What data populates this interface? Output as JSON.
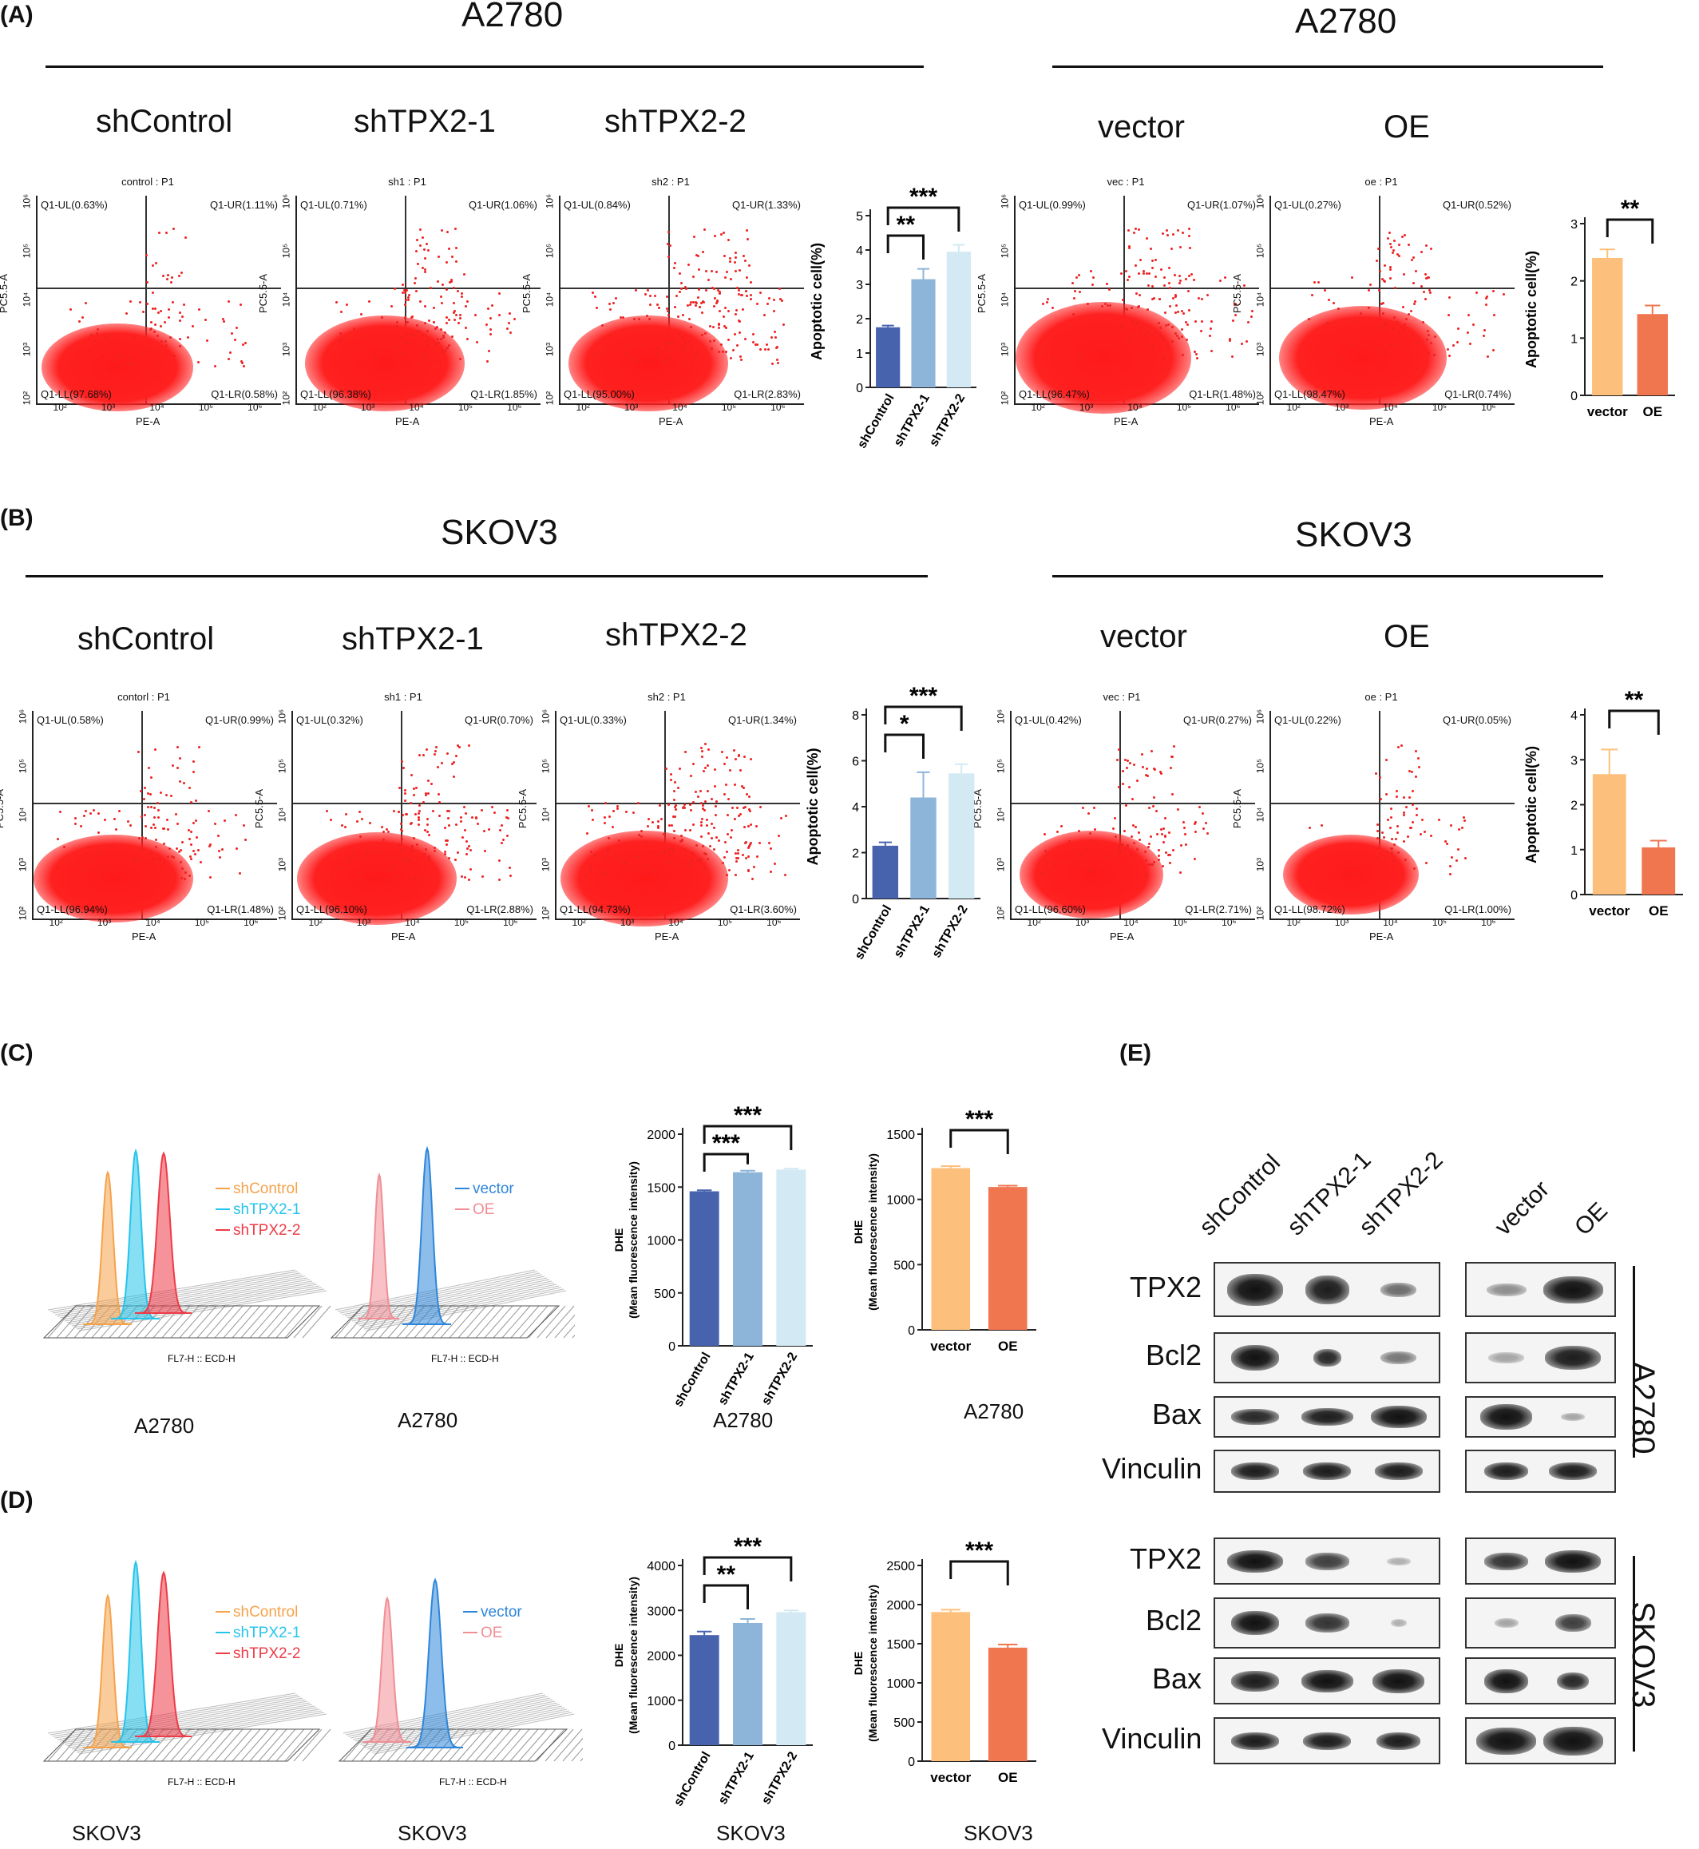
{
  "panels": {
    "A": {
      "letter": "(A)",
      "left_title": "A2780",
      "right_title": "A2780",
      "conds_left": [
        "shControl",
        "shTPX2-1",
        "shTPX2-2"
      ],
      "conds_right": [
        "vector",
        "OE"
      ],
      "facs": [
        {
          "title": "control : P1",
          "ul": "Q1-UL(0.63%)",
          "ur": "Q1-UR(1.11%)",
          "ll": "Q1-LL(97.68%)",
          "lr": "Q1-LR(0.58%)"
        },
        {
          "title": "sh1 : P1",
          "ul": "Q1-UL(0.71%)",
          "ur": "Q1-UR(1.06%)",
          "ll": "Q1-LL(96.38%)",
          "lr": "Q1-LR(1.85%)"
        },
        {
          "title": "sh2 : P1",
          "ul": "Q1-UL(0.84%)",
          "ur": "Q1-UR(1.33%)",
          "ll": "Q1-LL(95.00%)",
          "lr": "Q1-LR(2.83%)"
        },
        {
          "title": "vec : P1",
          "ul": "Q1-UL(0.99%)",
          "ur": "Q1-UR(1.07%)",
          "ll": "Q1-LL(96.47%)",
          "lr": "Q1-LR(1.48%)"
        },
        {
          "title": "oe : P1",
          "ul": "Q1-UL(0.27%)",
          "ur": "Q1-UR(0.52%)",
          "ll": "Q1-LL(98.47%)",
          "lr": "Q1-LR(0.74%)"
        }
      ]
    },
    "B": {
      "letter": "(B)",
      "left_title": "SKOV3",
      "right_title": "SKOV3",
      "conds_left": [
        "shControl",
        "shTPX2-1",
        "shTPX2-2"
      ],
      "conds_right": [
        "vector",
        "OE"
      ],
      "facs": [
        {
          "title": "contorl : P1",
          "ul": "Q1-UL(0.58%)",
          "ur": "Q1-UR(0.99%)",
          "ll": "Q1-LL(96.94%)",
          "lr": "Q1-LR(1.48%)"
        },
        {
          "title": "sh1 : P1",
          "ul": "Q1-UL(0.32%)",
          "ur": "Q1-UR(0.70%)",
          "ll": "Q1-LL(96.10%)",
          "lr": "Q1-LR(2.88%)"
        },
        {
          "title": "sh2 : P1",
          "ul": "Q1-UL(0.33%)",
          "ur": "Q1-UR(1.34%)",
          "ll": "Q1-LL(94.73%)",
          "lr": "Q1-LR(3.60%)"
        },
        {
          "title": "vec : P1",
          "ul": "Q1-UL(0.42%)",
          "ur": "Q1-UR(0.27%)",
          "ll": "Q1-LL(96.60%)",
          "lr": "Q1-LR(2.71%)"
        },
        {
          "title": "oe : P1",
          "ul": "Q1-UL(0.22%)",
          "ur": "Q1-UR(0.05%)",
          "ll": "Q1-LL(98.72%)",
          "lr": "Q1-LR(1.00%)"
        }
      ]
    },
    "C": {
      "letter": "(C)",
      "hist1_caption": "A2780",
      "hist2_caption": "A2780",
      "bar1_caption": "A2780",
      "bar2_caption": "A2780"
    },
    "D": {
      "letter": "(D)",
      "hist1_caption": "SKOV3",
      "hist2_caption": "SKOV3",
      "bar1_caption": "SKOV3",
      "bar2_caption": "SKOV3"
    },
    "E": {
      "letter": "(E)",
      "lanes_left": [
        "shControl",
        "shTPX2-1",
        "shTPX2-2"
      ],
      "lanes_right": [
        "vector",
        "OE"
      ],
      "proteins": [
        "TPX2",
        "Bcl2",
        "Bax",
        "Vinculin"
      ],
      "cell_a": "A2780",
      "cell_b": "SKOV3"
    }
  },
  "facs_axis": {
    "x_label": "PE-A",
    "y_label": "PC5.5-A",
    "x_ticks": [
      "10²",
      "10³",
      "10⁴",
      "10⁵",
      "10⁶"
    ],
    "y_ticks": [
      "10⁶",
      "10⁵",
      "10⁴",
      "10³",
      "10²"
    ]
  },
  "hist_axis": {
    "x_label": "FL7-H :: ECD-H"
  },
  "hist_legend": {
    "sh": [
      "shControl",
      "shTPX2-1",
      "shTPX2-2"
    ],
    "oe": [
      "vector",
      "OE"
    ]
  },
  "colors": {
    "shControl": "#4763AE",
    "shTPX2_1": "#8DB5DA",
    "shTPX2_2": "#D3E9F3",
    "vector": "#FDC07C",
    "OE": "#F07650",
    "facs_dots": "#FF2020"
  },
  "chart_data": [
    {
      "id": "A_sh",
      "type": "bar",
      "ylabel": "Apoptotic cell(%)",
      "categories": [
        "shControl",
        "shTPX2-1",
        "shTPX2-2"
      ],
      "values": [
        1.75,
        3.15,
        3.95
      ],
      "errors": [
        0.05,
        0.3,
        0.2
      ],
      "ylim": [
        0,
        5
      ],
      "yticks": [
        0,
        1,
        2,
        3,
        4,
        5
      ],
      "sig": [
        {
          "from": 0,
          "to": 1,
          "label": "**"
        },
        {
          "from": 0,
          "to": 2,
          "label": "***"
        }
      ]
    },
    {
      "id": "A_oe",
      "type": "bar",
      "ylabel": "Apoptotic cell(%)",
      "categories": [
        "vector",
        "OE"
      ],
      "values": [
        2.4,
        1.42
      ],
      "errors": [
        0.15,
        0.15
      ],
      "ylim": [
        0,
        3
      ],
      "yticks": [
        0,
        1,
        2,
        3
      ],
      "sig": [
        {
          "from": 0,
          "to": 1,
          "label": "**"
        }
      ]
    },
    {
      "id": "B_sh",
      "type": "bar",
      "ylabel": "Apoptotic cell(%)",
      "categories": [
        "shControl",
        "shTPX2-1",
        "shTPX2-2"
      ],
      "values": [
        2.3,
        4.4,
        5.45
      ],
      "errors": [
        0.15,
        1.1,
        0.4
      ],
      "ylim": [
        0,
        8
      ],
      "yticks": [
        0,
        2,
        4,
        6,
        8
      ],
      "sig": [
        {
          "from": 0,
          "to": 1,
          "label": "*"
        },
        {
          "from": 0,
          "to": 2,
          "label": "***"
        }
      ]
    },
    {
      "id": "B_oe",
      "type": "bar",
      "ylabel": "Apoptotic cell(%)",
      "categories": [
        "vector",
        "OE"
      ],
      "values": [
        2.68,
        1.05
      ],
      "errors": [
        0.55,
        0.15
      ],
      "ylim": [
        0,
        4
      ],
      "yticks": [
        0,
        1,
        2,
        3,
        4
      ],
      "sig": [
        {
          "from": 0,
          "to": 1,
          "label": "**"
        }
      ]
    },
    {
      "id": "C_sh",
      "type": "bar",
      "ylabel": "DHE\n(Mean fluorescence intensity)",
      "categories": [
        "shControl",
        "shTPX2-1",
        "shTPX2-2"
      ],
      "values": [
        1460,
        1640,
        1665
      ],
      "errors": [
        10,
        15,
        10
      ],
      "ylim": [
        0,
        2000
      ],
      "yticks": [
        0,
        500,
        1000,
        1500,
        2000
      ],
      "sig": [
        {
          "from": 0,
          "to": 1,
          "label": "***"
        },
        {
          "from": 0,
          "to": 2,
          "label": "***"
        }
      ]
    },
    {
      "id": "C_oe",
      "type": "bar",
      "ylabel": "DHE\n(Mean fluorescence intensity)",
      "categories": [
        "vector",
        "OE"
      ],
      "values": [
        1240,
        1095
      ],
      "errors": [
        15,
        10
      ],
      "ylim": [
        0,
        1500
      ],
      "yticks": [
        0,
        500,
        1000,
        1500
      ],
      "sig": [
        {
          "from": 0,
          "to": 1,
          "label": "***"
        }
      ]
    },
    {
      "id": "D_sh",
      "type": "bar",
      "ylabel": "DHE\n(Mean fluorescence intensity)",
      "categories": [
        "shControl",
        "shTPX2-1",
        "shTPX2-2"
      ],
      "values": [
        2450,
        2720,
        2960
      ],
      "errors": [
        80,
        90,
        40
      ],
      "ylim": [
        0,
        4000
      ],
      "yticks": [
        0,
        1000,
        2000,
        3000,
        4000
      ],
      "sig": [
        {
          "from": 0,
          "to": 1,
          "label": "**"
        },
        {
          "from": 0,
          "to": 2,
          "label": "***"
        }
      ]
    },
    {
      "id": "D_oe",
      "type": "bar",
      "ylabel": "DHE\n(Mean fluorescence intensity)",
      "categories": [
        "vector",
        "OE"
      ],
      "values": [
        1905,
        1450
      ],
      "errors": [
        30,
        40
      ],
      "ylim": [
        0,
        2500
      ],
      "yticks": [
        0,
        500,
        1000,
        1500,
        2000,
        2500
      ],
      "sig": [
        {
          "from": 0,
          "to": 1,
          "label": "***"
        }
      ]
    }
  ]
}
